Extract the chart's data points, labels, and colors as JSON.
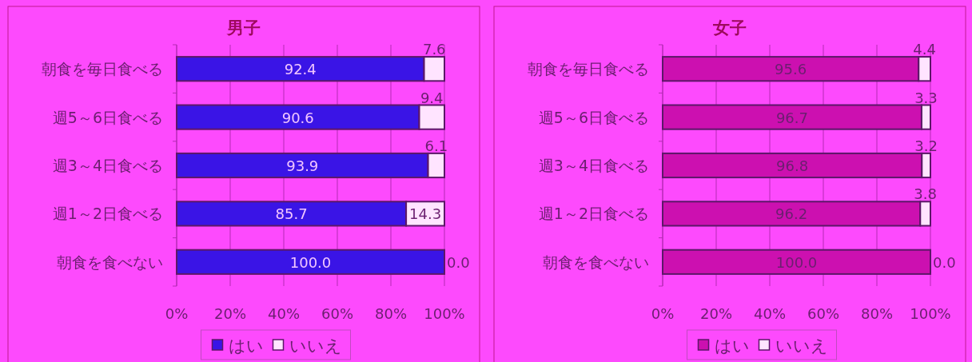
{
  "chart_data": [
    {
      "type": "bar",
      "orientation": "horizontal",
      "stacked": true,
      "title": "男子",
      "categories": [
        "朝食を毎日食べる",
        "週5～6日食べる",
        "週3～4日食べる",
        "週1～2日食べる",
        "朝食を食べない"
      ],
      "series": [
        {
          "name": "はい",
          "color": "#3a14e6",
          "values": [
            92.4,
            90.6,
            93.9,
            85.7,
            100.0
          ],
          "value_labels": [
            "92.4",
            "90.6",
            "93.9",
            "85.7",
            "100.0"
          ]
        },
        {
          "name": "いいえ",
          "color": "#ffe4ff",
          "values": [
            7.6,
            9.4,
            6.1,
            14.3,
            0.0
          ],
          "value_labels": [
            "7.6",
            "9.4",
            "6.1",
            "14.3",
            "0.0"
          ]
        }
      ],
      "xlim": [
        0,
        100
      ],
      "xticks": [
        {
          "value": 0,
          "label": "0%"
        },
        {
          "value": 20,
          "label": "20%"
        },
        {
          "value": 40,
          "label": "40%"
        },
        {
          "value": 60,
          "label": "60%"
        },
        {
          "value": 80,
          "label": "80%"
        },
        {
          "value": 100,
          "label": "100%"
        }
      ],
      "grid": "x",
      "legend": "bottom"
    },
    {
      "type": "bar",
      "orientation": "horizontal",
      "stacked": true,
      "title": "女子",
      "categories": [
        "朝食を毎日食べる",
        "週5～6日食べる",
        "週3～4日食べる",
        "週1～2日食べる",
        "朝食を食べない"
      ],
      "series": [
        {
          "name": "はい",
          "color": "#cc10b0",
          "values": [
            95.6,
            96.7,
            96.8,
            96.2,
            100.0
          ],
          "value_labels": [
            "95.6",
            "96.7",
            "96.8",
            "96.2",
            "100.0"
          ]
        },
        {
          "name": "いいえ",
          "color": "#ffe4ff",
          "values": [
            4.4,
            3.3,
            3.2,
            3.8,
            0.0
          ],
          "value_labels": [
            "4.4",
            "3.3",
            "3.2",
            "3.8",
            "0.0"
          ]
        }
      ],
      "xlim": [
        0,
        100
      ],
      "xticks": [
        {
          "value": 0,
          "label": "0%"
        },
        {
          "value": 20,
          "label": "20%"
        },
        {
          "value": 40,
          "label": "40%"
        },
        {
          "value": 60,
          "label": "60%"
        },
        {
          "value": 80,
          "label": "80%"
        },
        {
          "value": 100,
          "label": "100%"
        }
      ],
      "grid": "x",
      "legend": "bottom"
    }
  ]
}
